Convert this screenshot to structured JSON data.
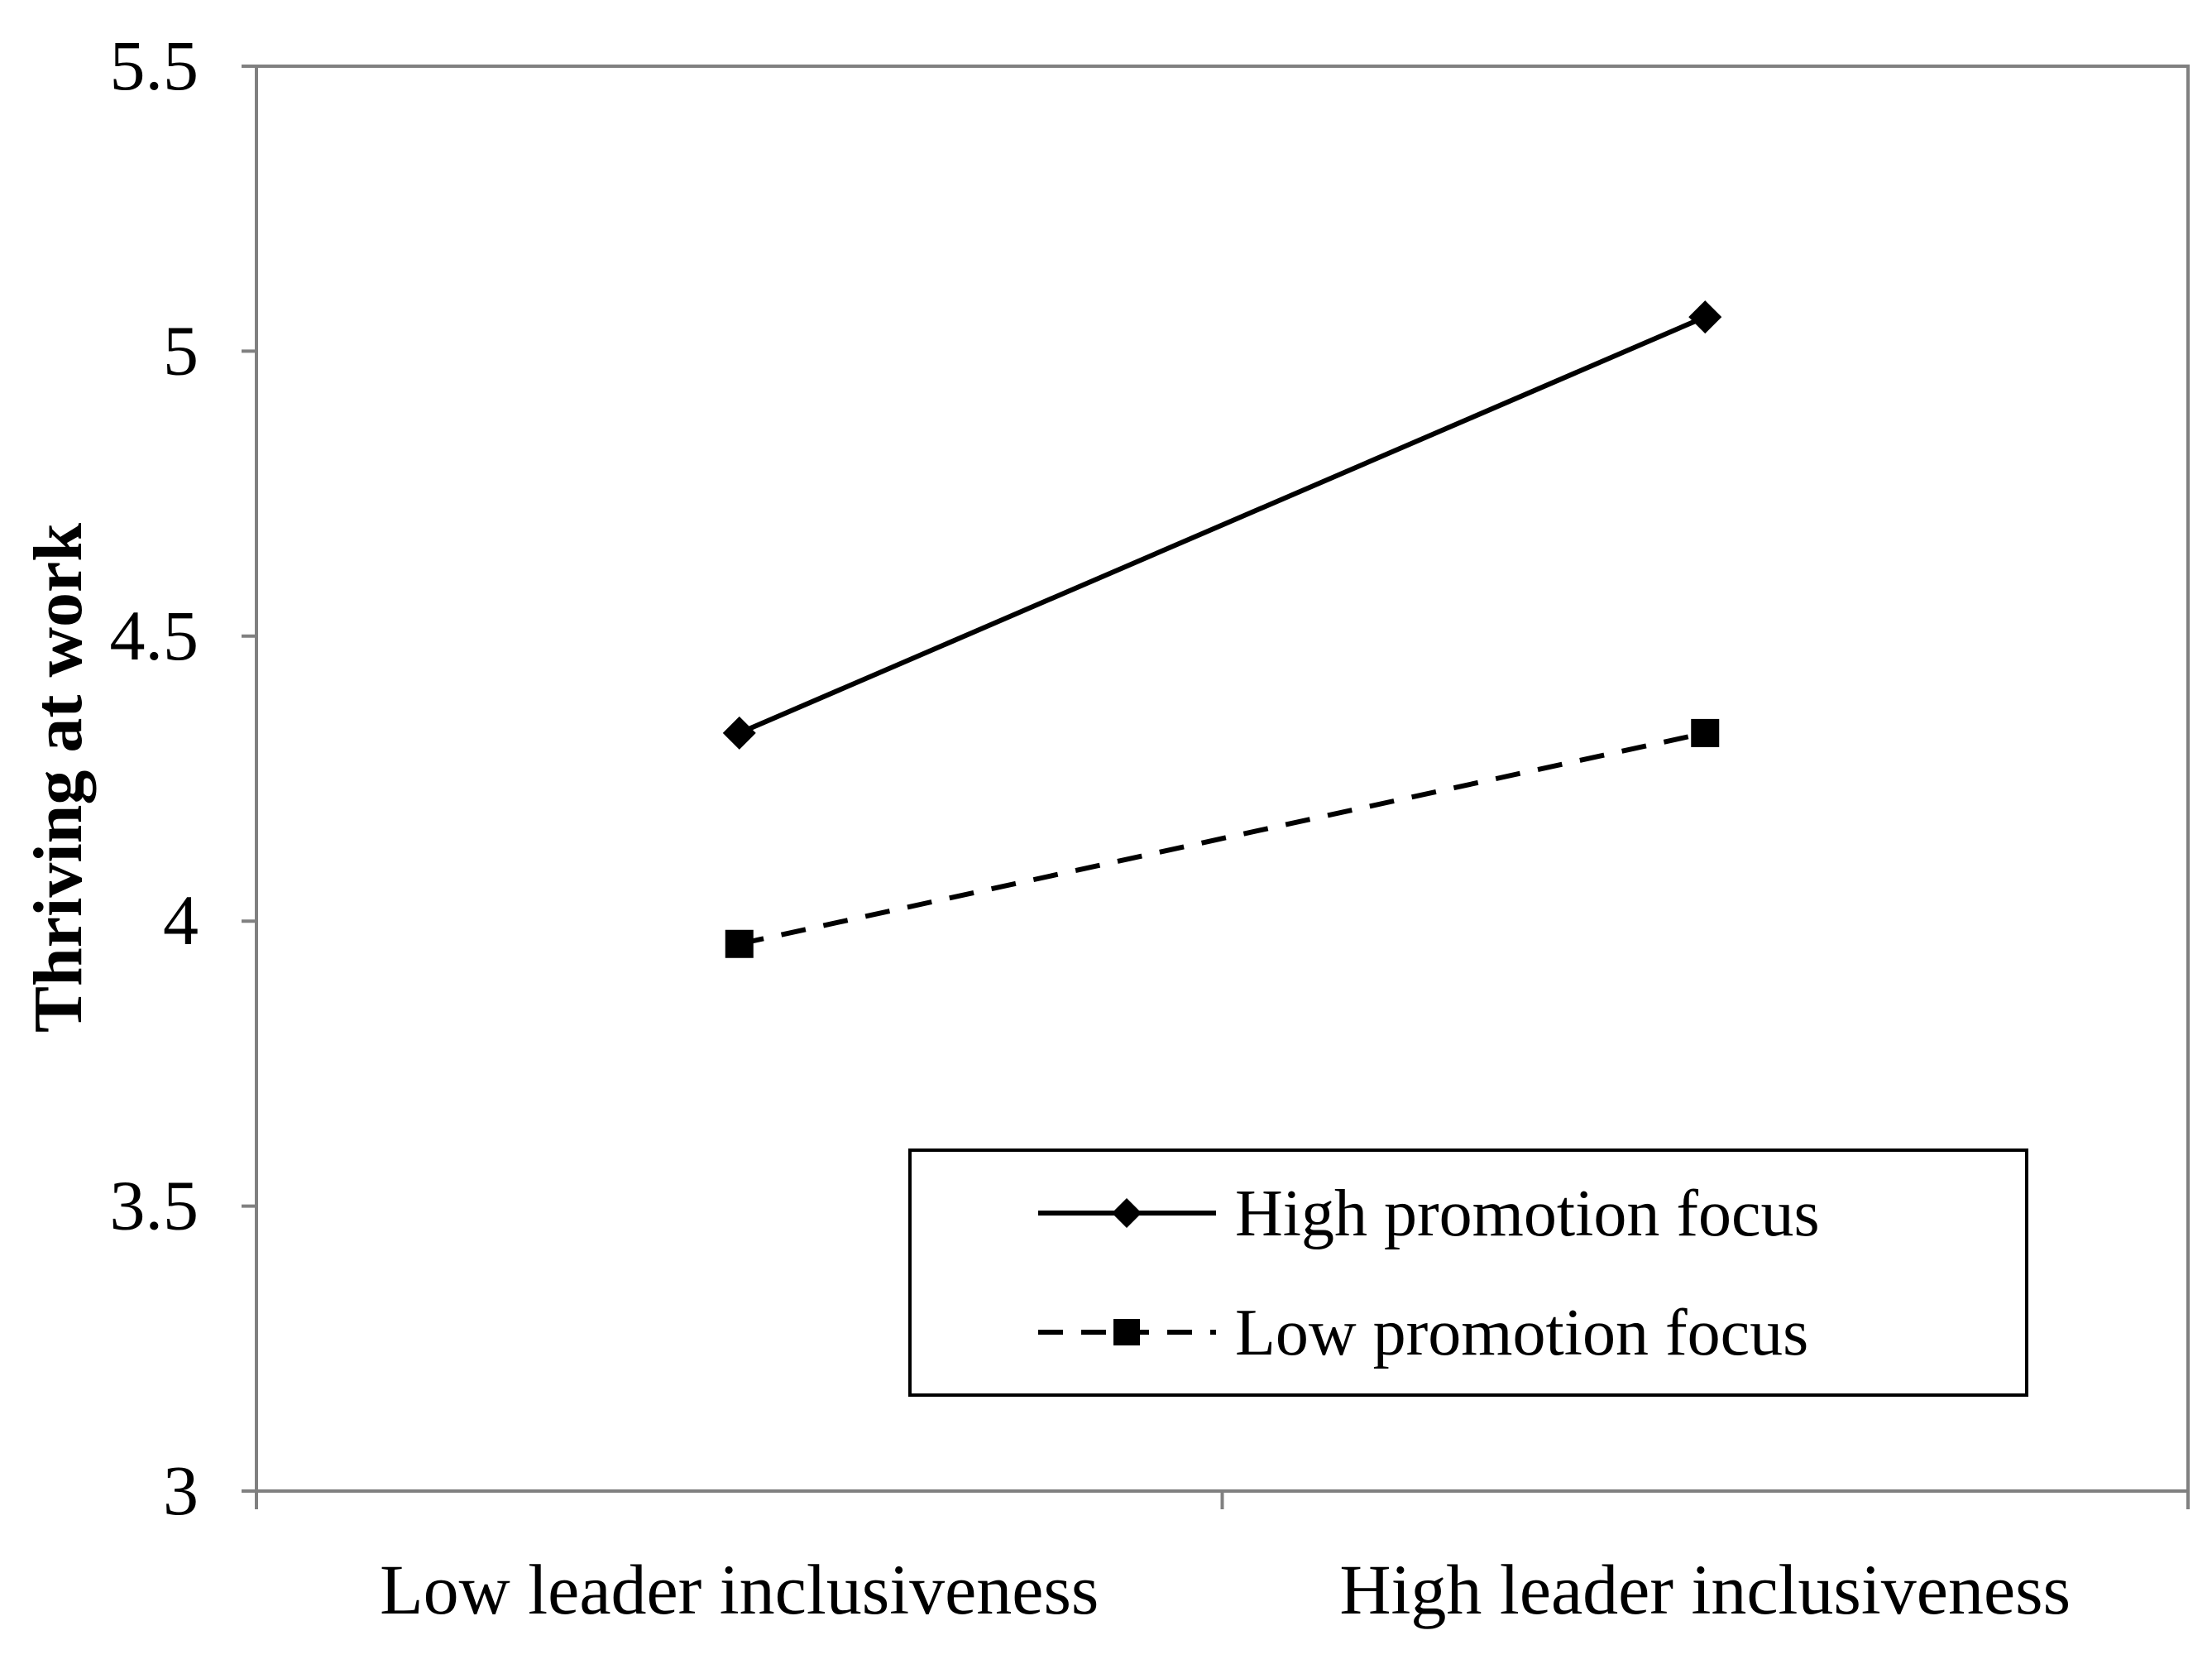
{
  "chart_data": {
    "type": "line",
    "title": "",
    "xlabel": "",
    "ylabel": "Thriving at work",
    "categories": [
      "Low leader inclusiveness",
      "High leader inclusiveness"
    ],
    "ylim": [
      3,
      5.5
    ],
    "yticks": [
      "3",
      "3.5",
      "4",
      "4.5",
      "5",
      "5.5"
    ],
    "grid": false,
    "legend_position": "bottom-right",
    "series": [
      {
        "name": "High promotion focus",
        "values": [
          4.33,
          5.06
        ],
        "line_style": "solid",
        "marker": "diamond",
        "color": "#000000"
      },
      {
        "name": "Low promotion focus",
        "values": [
          3.96,
          4.33
        ],
        "line_style": "dashed",
        "marker": "square",
        "color": "#000000"
      }
    ]
  }
}
